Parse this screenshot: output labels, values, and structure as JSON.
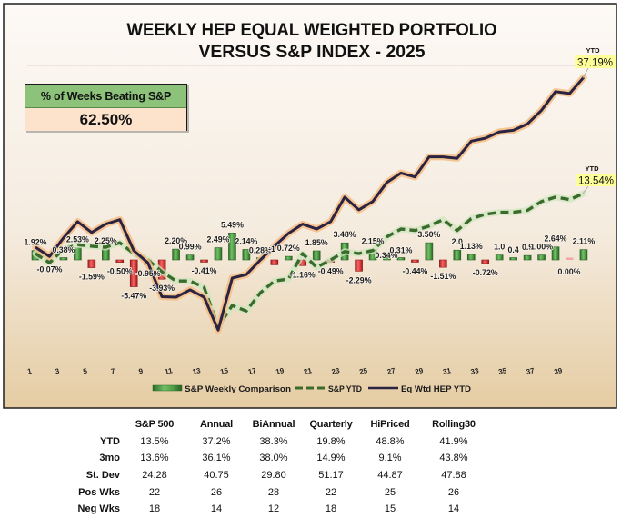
{
  "chart_data": {
    "type": "bar",
    "title": "WEEKLY HEP EQUAL WEIGHTED PORTFOLIO VERSUS S&P INDEX - 2025",
    "title_lines": [
      "WEEKLY HEP EQUAL WEIGHTED PORTFOLIO",
      "VERSUS S&P INDEX - 2025"
    ],
    "xlabel": "",
    "ylabel": "",
    "x": [
      1,
      2,
      3,
      4,
      5,
      6,
      7,
      8,
      9,
      10,
      11,
      12,
      13,
      14,
      15,
      16,
      17,
      18,
      19,
      20,
      21,
      22,
      23,
      24,
      25,
      26,
      27,
      28,
      29,
      30,
      31,
      32,
      33,
      34,
      35,
      36,
      37,
      38,
      39,
      40
    ],
    "x_tick_labels": [
      "1",
      "3",
      "5",
      "7",
      "9",
      "11",
      "13",
      "15",
      "17",
      "19",
      "21",
      "23",
      "25",
      "27",
      "29",
      "31",
      "33",
      "35",
      "37",
      "39"
    ],
    "ylim": [
      -16,
      40
    ],
    "grid": false,
    "legend_position": "bottom",
    "series": [
      {
        "name": "S&P Weekly Comparison",
        "kind": "bar",
        "unit": "%",
        "values": [
          1.92,
          -0.07,
          0.38,
          2.53,
          -1.59,
          2.25,
          -0.5,
          -5.47,
          -0.95,
          -3.93,
          2.2,
          0.99,
          -0.41,
          2.49,
          5.49,
          2.14,
          0.28,
          -1.0,
          0.72,
          -1.16,
          1.85,
          -0.49,
          3.48,
          -2.29,
          2.15,
          0.34,
          0.31,
          -0.44,
          3.5,
          -1.51,
          2.0,
          1.13,
          -0.72,
          1.0,
          0.4,
          0.9,
          1.0,
          2.64,
          0.0,
          2.11
        ],
        "labels": [
          "1.92%",
          "-0.07%",
          "0.38%",
          "2.53%",
          "-1.59%",
          "2.25%",
          "-0.50%",
          "-5.47%",
          "-0.95%",
          "-3.93%",
          "2.20%",
          "0.99%",
          "-0.41%",
          "2.49%",
          "5.49%",
          "2.14%",
          "0.28%",
          "-1",
          "0.72%",
          "-1.16%",
          "1.85%",
          "-0.49%",
          "3.48%",
          "-2.29%",
          "2.15%",
          "0.34%",
          "0.31%",
          "-0.44%",
          "3.50%",
          "-1.51%",
          "2.0",
          "1.13%",
          "-0.72%",
          "1.0",
          "0.4",
          "0.9",
          "1.00%",
          "2.64%",
          "0.00%",
          "2.11%"
        ]
      },
      {
        "name": "S&P YTD",
        "kind": "line",
        "style": "dashed",
        "unit": "%",
        "values": [
          1.3,
          -0.6,
          2.2,
          3.1,
          2.8,
          2.6,
          3.5,
          1.3,
          0.0,
          -2.4,
          -4.3,
          -4.3,
          -5.6,
          -13.6,
          -9.3,
          -10.4,
          -6.7,
          -4.3,
          -3.9,
          1.3,
          -1.5,
          0.0,
          1.7,
          1.3,
          1.9,
          4.7,
          6.3,
          6.0,
          6.9,
          8.2,
          6.0,
          8.4,
          9.3,
          9.7,
          9.7,
          10.1,
          11.9,
          12.8,
          12.3,
          13.54
        ]
      },
      {
        "name": "Eq Wtd HEP YTD",
        "kind": "line",
        "style": "solid",
        "unit": "%",
        "values": [
          2.6,
          0.7,
          4.5,
          7.8,
          5.6,
          7.3,
          8.2,
          1.9,
          -0.6,
          -7.5,
          -7.6,
          -6.1,
          -7.6,
          -14.3,
          -3.7,
          -3.0,
          0.0,
          2.8,
          5.4,
          7.3,
          6.3,
          7.8,
          12.8,
          10.2,
          11.9,
          15.8,
          17.7,
          16.9,
          21.0,
          21.0,
          20.7,
          24.2,
          24.8,
          26.1,
          26.4,
          27.7,
          30.5,
          34.3,
          33.9,
          37.19
        ]
      }
    ],
    "annotations": [
      {
        "series": "Eq Wtd HEP YTD",
        "heading": "YTD",
        "text": "37.19%"
      },
      {
        "series": "S&P YTD",
        "heading": "YTD",
        "text": "13.54%"
      }
    ]
  },
  "summary_box": {
    "header": "% of Weeks Beating S&P",
    "value": "62.50%"
  },
  "stats_table": {
    "columns": [
      "S&P 500",
      "Annual",
      "BiAnnual",
      "Quarterly",
      "HiPriced",
      "Rolling30"
    ],
    "rows": [
      {
        "label": "YTD",
        "values": [
          "13.5%",
          "37.2%",
          "38.3%",
          "19.8%",
          "48.8%",
          "41.9%"
        ]
      },
      {
        "label": "3mo",
        "values": [
          "13.6%",
          "36.1%",
          "38.0%",
          "14.9%",
          "9.1%",
          "43.8%"
        ]
      },
      {
        "label": "St. Dev",
        "values": [
          "24.28",
          "40.75",
          "29.80",
          "51.17",
          "44.87",
          "47.88"
        ]
      },
      {
        "label": "Pos Wks",
        "values": [
          "22",
          "26",
          "28",
          "22",
          "25",
          "26"
        ]
      },
      {
        "label": "Neg Wks",
        "values": [
          "18",
          "14",
          "12",
          "18",
          "15",
          "14"
        ]
      }
    ]
  },
  "colors": {
    "bar_positive": "#4f9e45",
    "bar_negative": "#e23d3d",
    "bar_zero": "#f2a7a7",
    "sp_ytd_line": "#3b6b2c",
    "sp_ytd_glow": "#cfe6bf",
    "hep_ytd_line": "#2a2342",
    "hep_ytd_glow": "#f6bd85",
    "callout_fill": "#ffff99",
    "summary_header": "#8cc27a",
    "summary_value": "#fde3cc"
  }
}
